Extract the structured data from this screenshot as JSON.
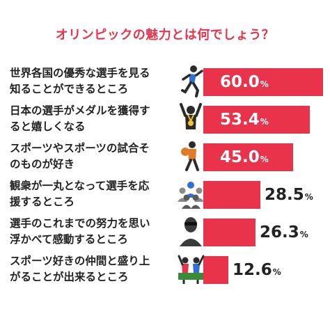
{
  "colors": {
    "accent": "#e8334a",
    "text": "#222222",
    "icon": "#3a3a3a"
  },
  "chart_data": {
    "type": "bar",
    "orientation": "horizontal",
    "title": "オリンピックの魅力とは何でしょう？",
    "xlim": [
      0,
      60
    ],
    "unit": "%",
    "categories": [
      [
        "世界各国の優秀な選手を見る",
        "知ることができるところ"
      ],
      [
        "日本の選手がメダルを獲得す",
        "ると嬉しくなる"
      ],
      [
        "スポーツやスポーツの試合そ",
        "のものが好き"
      ],
      [
        "観衆が一丸となって選手を応",
        "援するところ"
      ],
      [
        "選手のこれまでの努力を思い",
        "浮かべて感動するところ"
      ],
      [
        "スポーツ好きの仲間と盛り上",
        "がることが出来るところ"
      ]
    ],
    "values": [
      60.0,
      53.4,
      45.0,
      28.5,
      26.3,
      12.6
    ],
    "value_labels": [
      "60.0",
      "53.4",
      "45.0",
      "28.5",
      "26.3",
      "12.6"
    ],
    "icons": [
      "runner-icon",
      "medal-athlete-icon",
      "basketball-player-icon",
      "crowd-icon",
      "athlete-bust-icon",
      "cheering-fans-icon"
    ]
  }
}
